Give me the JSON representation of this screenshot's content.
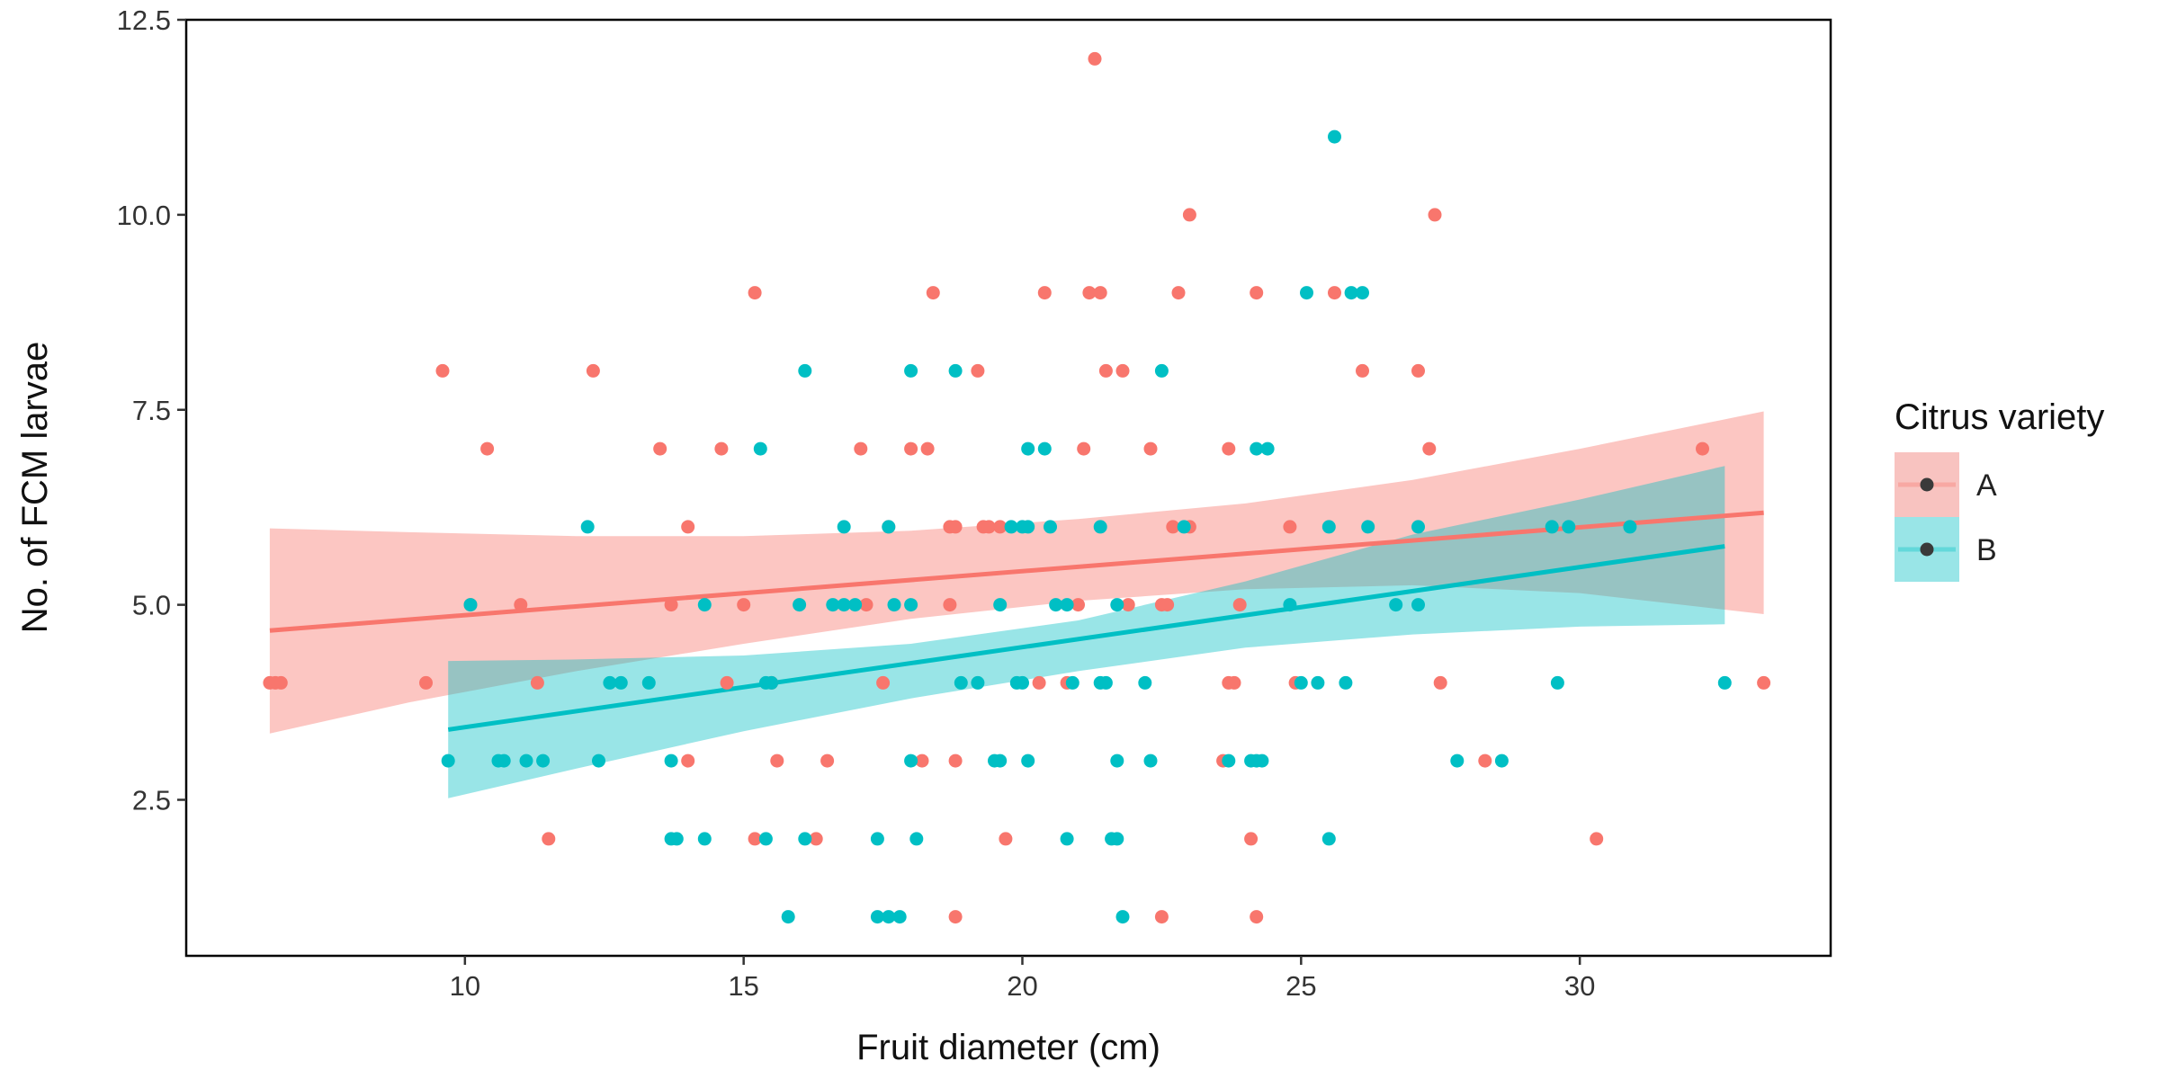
{
  "chart_data": {
    "type": "scatter",
    "xlabel": "Fruit diameter (cm)",
    "ylabel": "No. of FCM larvae",
    "xlim": [
      5.0,
      34.5
    ],
    "ylim": [
      0.5,
      12.5
    ],
    "xticks": [
      10,
      15,
      20,
      25,
      30
    ],
    "yticks": [
      2.5,
      5.0,
      7.5,
      10.0,
      12.5
    ],
    "xtick_labels": [
      "10",
      "15",
      "20",
      "25",
      "30"
    ],
    "ytick_labels": [
      "2.5",
      "5.0",
      "7.5",
      "10.0",
      "12.5"
    ],
    "grid": false,
    "legend": {
      "title": "Citrus variety",
      "position": "right",
      "entries": [
        "A",
        "B"
      ]
    },
    "series": [
      {
        "name": "A",
        "color": "#F8766D",
        "ribbon_color": "#F8C3C0",
        "trend": {
          "x": [
            6.5,
            33.3
          ],
          "y": [
            4.67,
            6.18
          ]
        },
        "band": {
          "x": [
            6.5,
            9.0,
            12.0,
            15.0,
            18.0,
            21.0,
            24.0,
            27.0,
            30.0,
            33.3
          ],
          "lower": [
            3.35,
            3.75,
            4.15,
            4.5,
            4.82,
            5.05,
            5.2,
            5.25,
            5.15,
            4.88
          ],
          "upper": [
            5.98,
            5.93,
            5.88,
            5.88,
            5.95,
            6.1,
            6.3,
            6.6,
            7.0,
            7.48
          ]
        },
        "points": [
          [
            6.5,
            4
          ],
          [
            6.6,
            4
          ],
          [
            6.7,
            4
          ],
          [
            9.6,
            8
          ],
          [
            9.3,
            4
          ],
          [
            10.1,
            5
          ],
          [
            10.4,
            7
          ],
          [
            11.0,
            5
          ],
          [
            11.3,
            4
          ],
          [
            11.5,
            2
          ],
          [
            12.3,
            8
          ],
          [
            13.5,
            7
          ],
          [
            13.7,
            5
          ],
          [
            14.0,
            6
          ],
          [
            14.0,
            3
          ],
          [
            14.6,
            7
          ],
          [
            14.7,
            4
          ],
          [
            15.0,
            5
          ],
          [
            15.2,
            9
          ],
          [
            15.2,
            2
          ],
          [
            15.5,
            4
          ],
          [
            15.6,
            3
          ],
          [
            16.5,
            3
          ],
          [
            16.3,
            2
          ],
          [
            17.1,
            7
          ],
          [
            17.2,
            5
          ],
          [
            17.6,
            6
          ],
          [
            17.5,
            4
          ],
          [
            18.0,
            7
          ],
          [
            18.3,
            7
          ],
          [
            18.2,
            3
          ],
          [
            18.4,
            9
          ],
          [
            18.7,
            6
          ],
          [
            18.8,
            6
          ],
          [
            18.7,
            5
          ],
          [
            18.8,
            3
          ],
          [
            18.8,
            1
          ],
          [
            19.2,
            8
          ],
          [
            19.3,
            6
          ],
          [
            19.4,
            6
          ],
          [
            19.6,
            6
          ],
          [
            19.7,
            2
          ],
          [
            20.3,
            4
          ],
          [
            20.4,
            9
          ],
          [
            20.8,
            4
          ],
          [
            21.0,
            5
          ],
          [
            21.2,
            9
          ],
          [
            21.1,
            7
          ],
          [
            21.3,
            12
          ],
          [
            21.4,
            9
          ],
          [
            21.5,
            8
          ],
          [
            21.8,
            8
          ],
          [
            21.9,
            5
          ],
          [
            22.3,
            7
          ],
          [
            22.5,
            5
          ],
          [
            22.6,
            5
          ],
          [
            22.7,
            6
          ],
          [
            22.8,
            9
          ],
          [
            22.5,
            1
          ],
          [
            23.0,
            6
          ],
          [
            23.0,
            10
          ],
          [
            23.7,
            7
          ],
          [
            23.6,
            3
          ],
          [
            23.7,
            4
          ],
          [
            23.8,
            4
          ],
          [
            23.9,
            5
          ],
          [
            24.1,
            2
          ],
          [
            24.2,
            9
          ],
          [
            24.2,
            1
          ],
          [
            24.8,
            6
          ],
          [
            24.9,
            4
          ],
          [
            25.6,
            9
          ],
          [
            26.1,
            8
          ],
          [
            27.1,
            8
          ],
          [
            27.3,
            7
          ],
          [
            27.4,
            10
          ],
          [
            27.5,
            4
          ],
          [
            28.3,
            3
          ],
          [
            30.3,
            2
          ],
          [
            32.2,
            7
          ],
          [
            33.3,
            4
          ]
        ]
      },
      {
        "name": "B",
        "color": "#00BFC4",
        "ribbon_color": "#99E5E7",
        "trend": {
          "x": [
            9.7,
            32.6
          ],
          "y": [
            3.4,
            5.75
          ]
        },
        "band": {
          "x": [
            9.7,
            12.0,
            15.0,
            18.0,
            21.0,
            24.0,
            27.0,
            30.0,
            32.6
          ],
          "lower": [
            2.52,
            2.9,
            3.38,
            3.8,
            4.15,
            4.45,
            4.62,
            4.72,
            4.75
          ],
          "upper": [
            4.28,
            4.3,
            4.35,
            4.5,
            4.8,
            5.3,
            5.9,
            6.35,
            6.78
          ]
        },
        "points": [
          [
            9.7,
            3
          ],
          [
            10.1,
            5
          ],
          [
            10.6,
            3
          ],
          [
            10.7,
            3
          ],
          [
            11.1,
            3
          ],
          [
            11.4,
            3
          ],
          [
            12.2,
            6
          ],
          [
            12.4,
            3
          ],
          [
            12.6,
            4
          ],
          [
            12.8,
            4
          ],
          [
            13.3,
            4
          ],
          [
            13.7,
            3
          ],
          [
            13.7,
            2
          ],
          [
            13.8,
            2
          ],
          [
            14.3,
            5
          ],
          [
            14.3,
            2
          ],
          [
            15.3,
            7
          ],
          [
            15.4,
            4
          ],
          [
            15.5,
            4
          ],
          [
            15.4,
            2
          ],
          [
            15.8,
            1
          ],
          [
            16.0,
            5
          ],
          [
            16.1,
            8
          ],
          [
            16.1,
            2
          ],
          [
            16.6,
            5
          ],
          [
            16.8,
            5
          ],
          [
            16.8,
            6
          ],
          [
            17.0,
            5
          ],
          [
            17.4,
            2
          ],
          [
            17.4,
            1
          ],
          [
            17.6,
            6
          ],
          [
            17.7,
            5
          ],
          [
            17.6,
            1
          ],
          [
            17.8,
            1
          ],
          [
            18.0,
            8
          ],
          [
            18.0,
            5
          ],
          [
            18.0,
            3
          ],
          [
            18.1,
            2
          ],
          [
            18.8,
            8
          ],
          [
            18.9,
            4
          ],
          [
            19.2,
            4
          ],
          [
            19.5,
            3
          ],
          [
            19.6,
            3
          ],
          [
            19.6,
            5
          ],
          [
            19.8,
            6
          ],
          [
            19.9,
            4
          ],
          [
            20.0,
            6
          ],
          [
            20.0,
            4
          ],
          [
            20.1,
            7
          ],
          [
            20.1,
            6
          ],
          [
            20.1,
            3
          ],
          [
            20.4,
            7
          ],
          [
            20.5,
            6
          ],
          [
            20.6,
            5
          ],
          [
            20.8,
            5
          ],
          [
            20.8,
            2
          ],
          [
            20.9,
            4
          ],
          [
            21.4,
            4
          ],
          [
            21.5,
            4
          ],
          [
            21.4,
            6
          ],
          [
            21.6,
            2
          ],
          [
            21.7,
            5
          ],
          [
            21.7,
            3
          ],
          [
            21.7,
            2
          ],
          [
            21.8,
            1
          ],
          [
            22.2,
            4
          ],
          [
            22.3,
            3
          ],
          [
            22.5,
            8
          ],
          [
            22.9,
            6
          ],
          [
            23.7,
            3
          ],
          [
            24.1,
            3
          ],
          [
            24.2,
            3
          ],
          [
            24.2,
            7
          ],
          [
            24.3,
            3
          ],
          [
            24.4,
            7
          ],
          [
            24.8,
            5
          ],
          [
            25.1,
            9
          ],
          [
            25.0,
            4
          ],
          [
            25.3,
            4
          ],
          [
            25.5,
            6
          ],
          [
            25.6,
            11
          ],
          [
            25.8,
            4
          ],
          [
            25.9,
            9
          ],
          [
            26.1,
            9
          ],
          [
            26.2,
            6
          ],
          [
            26.7,
            5
          ],
          [
            27.1,
            6
          ],
          [
            27.1,
            5
          ],
          [
            27.8,
            3
          ],
          [
            28.6,
            3
          ],
          [
            29.5,
            6
          ],
          [
            29.6,
            4
          ],
          [
            29.8,
            6
          ],
          [
            30.9,
            6
          ],
          [
            32.6,
            4
          ],
          [
            25.5,
            2
          ]
        ]
      }
    ]
  }
}
